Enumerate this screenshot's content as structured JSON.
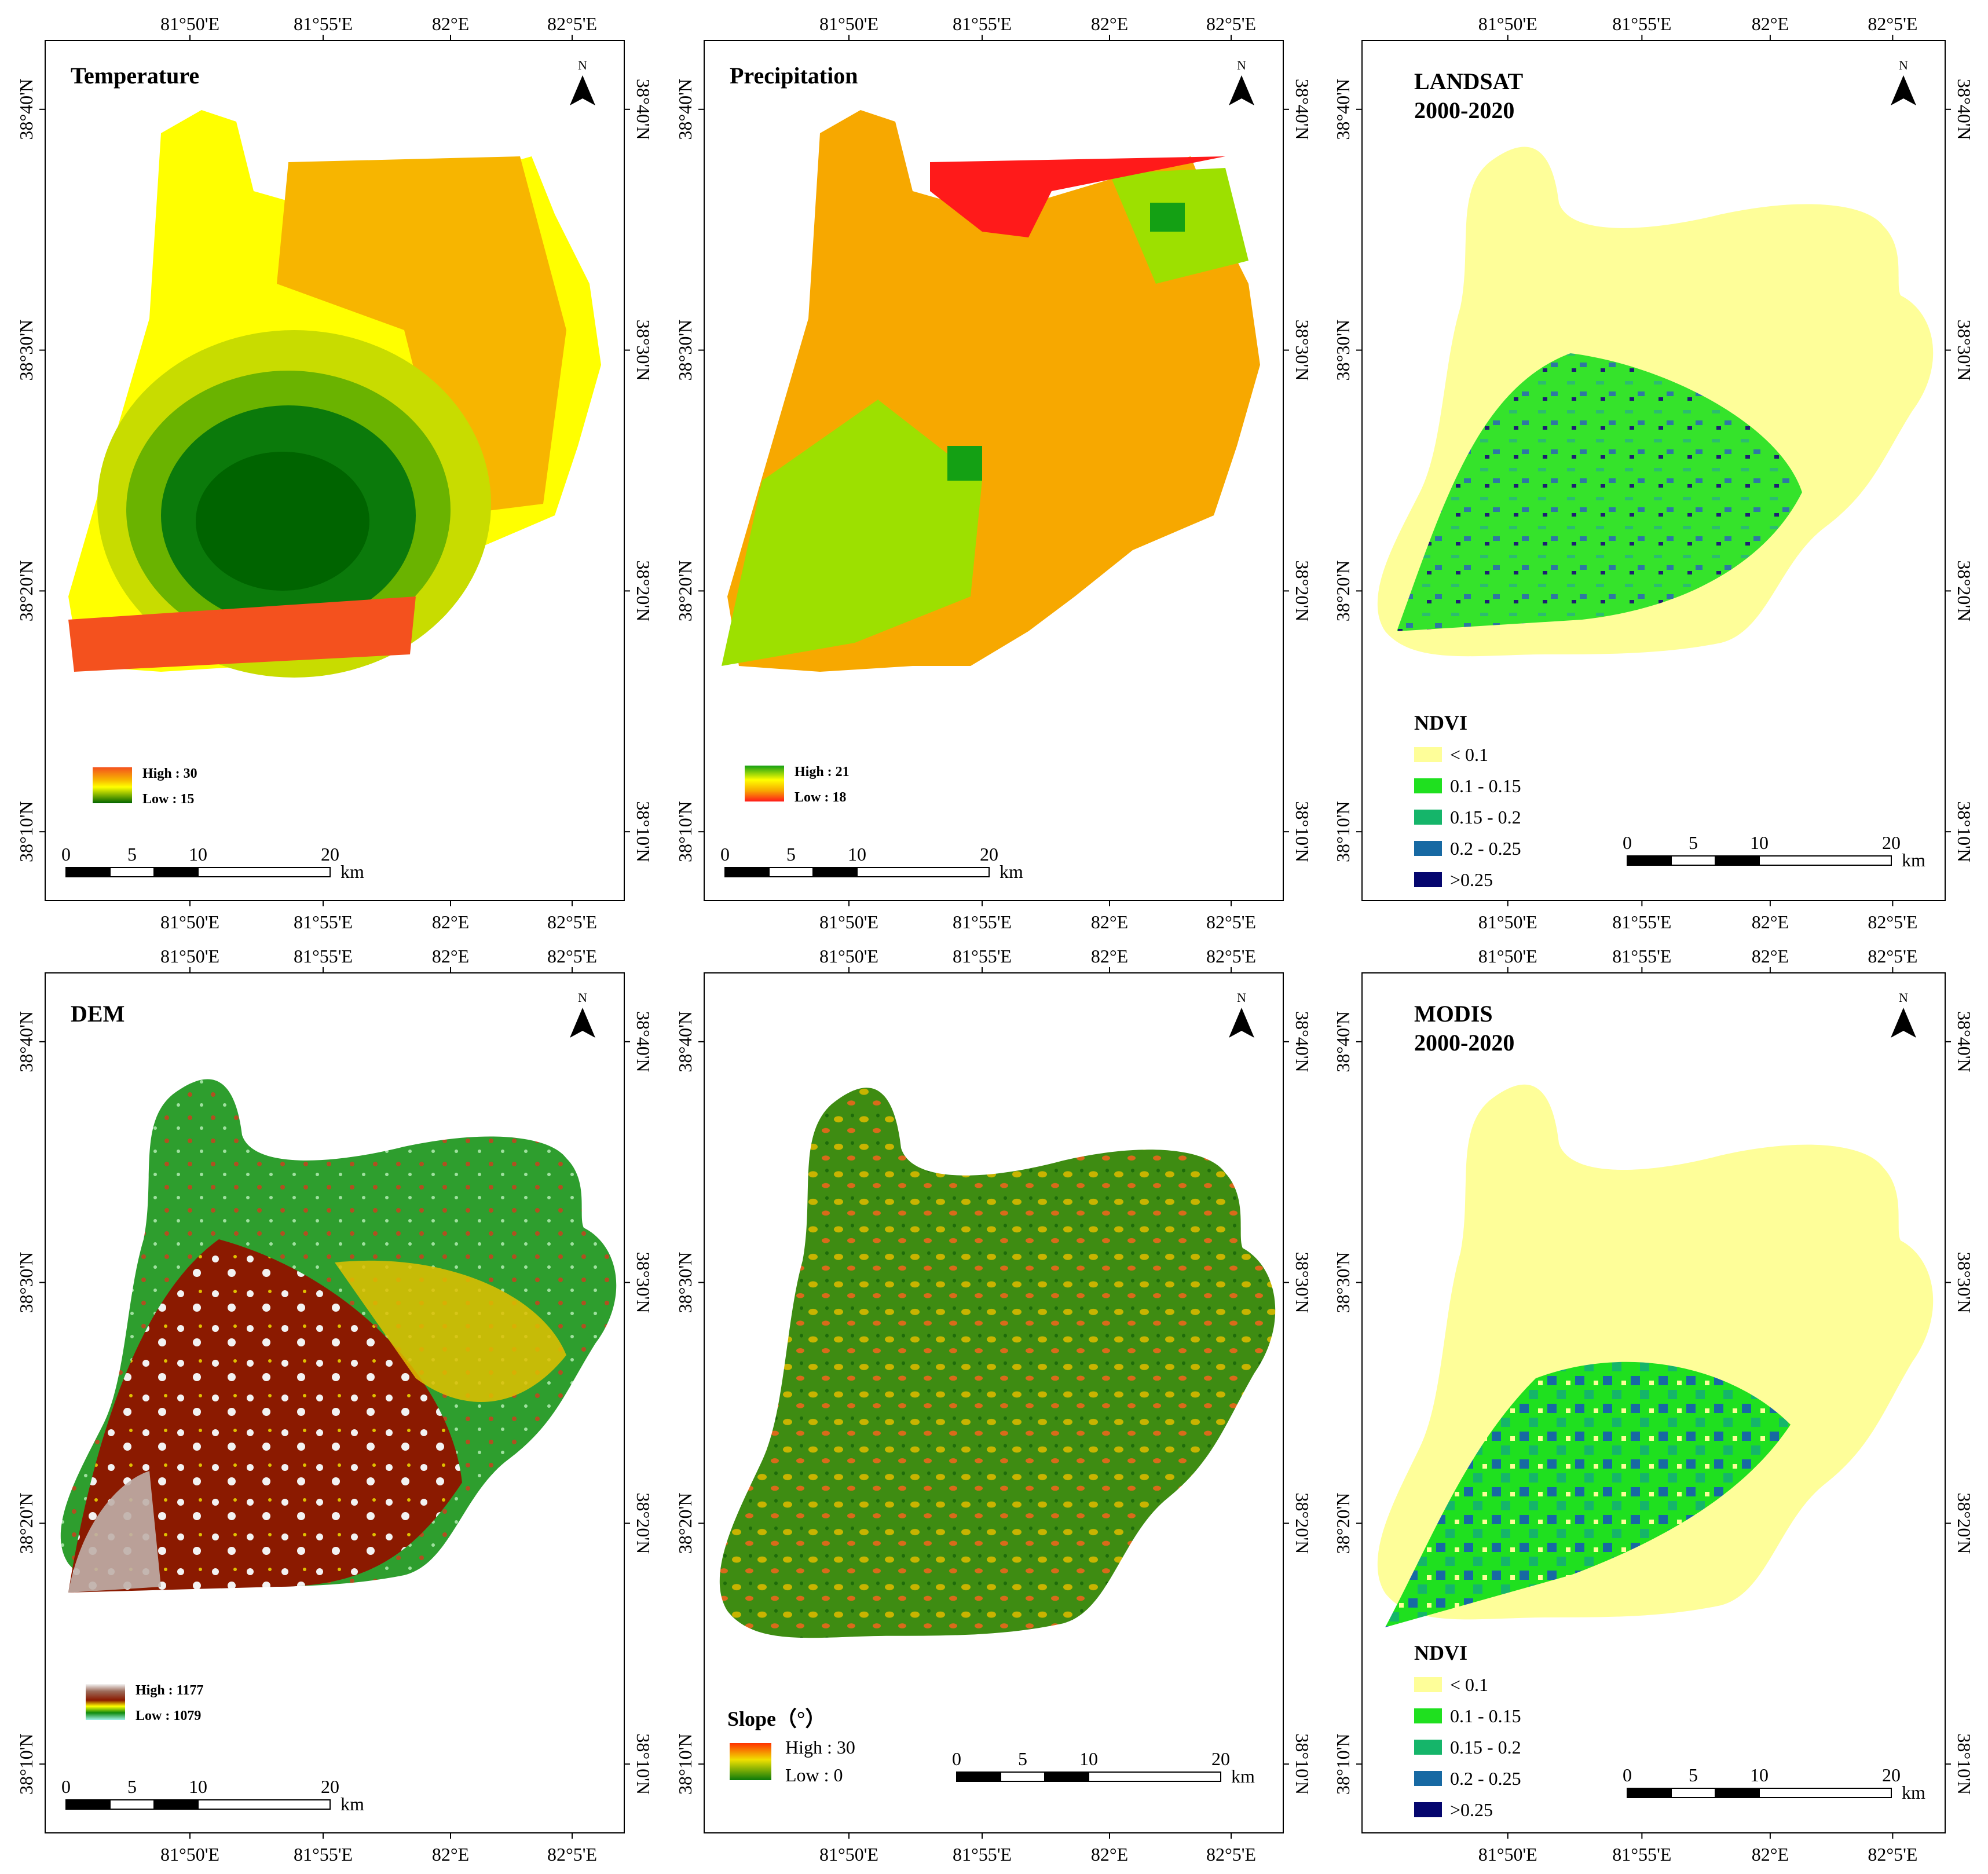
{
  "axes": {
    "lon_ticks": [
      "81°50'E",
      "81°55'E",
      "82°E",
      "82°5'E"
    ],
    "lat_ticks": [
      "38°40'N",
      "38°30'N",
      "38°20'N",
      "38°10'N"
    ]
  },
  "north_label": "N",
  "scalebar": {
    "labels": [
      "0",
      "5",
      "10",
      "20"
    ],
    "unit": "km"
  },
  "panels": {
    "temperature": {
      "title": "Temperature",
      "legend_high": "High : 30",
      "legend_low": "Low : 15"
    },
    "precipitation": {
      "title": "Precipitation",
      "legend_high": "High : 21",
      "legend_low": "Low : 18"
    },
    "landsat": {
      "title_line1": "LANDSAT",
      "title_line2": "2000-2020"
    },
    "dem": {
      "title": "DEM",
      "legend_high": "High : 1177",
      "legend_low": "Low : 1079"
    },
    "slope": {
      "legend_title": "Slope（°）",
      "legend_high": "High : 30",
      "legend_low": "Low : 0"
    },
    "modis": {
      "title_line1": "MODIS",
      "title_line2": "2000-2020"
    }
  },
  "ndvi_legend": {
    "title": "NDVI",
    "classes": [
      {
        "label": "< 0.1",
        "color": "#FEFE99"
      },
      {
        "label": "0.1 - 0.15",
        "color": "#1FE01F"
      },
      {
        "label": "0.15 - 0.2",
        "color": "#15B56A"
      },
      {
        "label": "0.2 - 0.25",
        "color": "#1769A3"
      },
      {
        "label": ">0.25",
        "color": "#05066E"
      }
    ]
  },
  "colors": {
    "temp_yellow": "#FFFF00",
    "temp_orange": "#F7B500",
    "temp_lightgreen": "#C8DC00",
    "temp_green": "#6AB300",
    "temp_darkgreen": "#0B7A0B",
    "temp_deep": "#006400",
    "temp_red": "#F4511E",
    "precip_orange": "#F7A800",
    "precip_lightgreen": "#9DE000",
    "precip_green": "#14A014",
    "precip_red": "#FF1A1A",
    "ndvi_bg": "#FEFE99",
    "dem_green": "#2E9E2E",
    "dem_brown": "#8B1A00",
    "dem_yellow": "#E0C000",
    "dem_pale": "#BFAFA8",
    "slope_green": "#3E8C12",
    "slope_dark": "#1E6B0A"
  }
}
